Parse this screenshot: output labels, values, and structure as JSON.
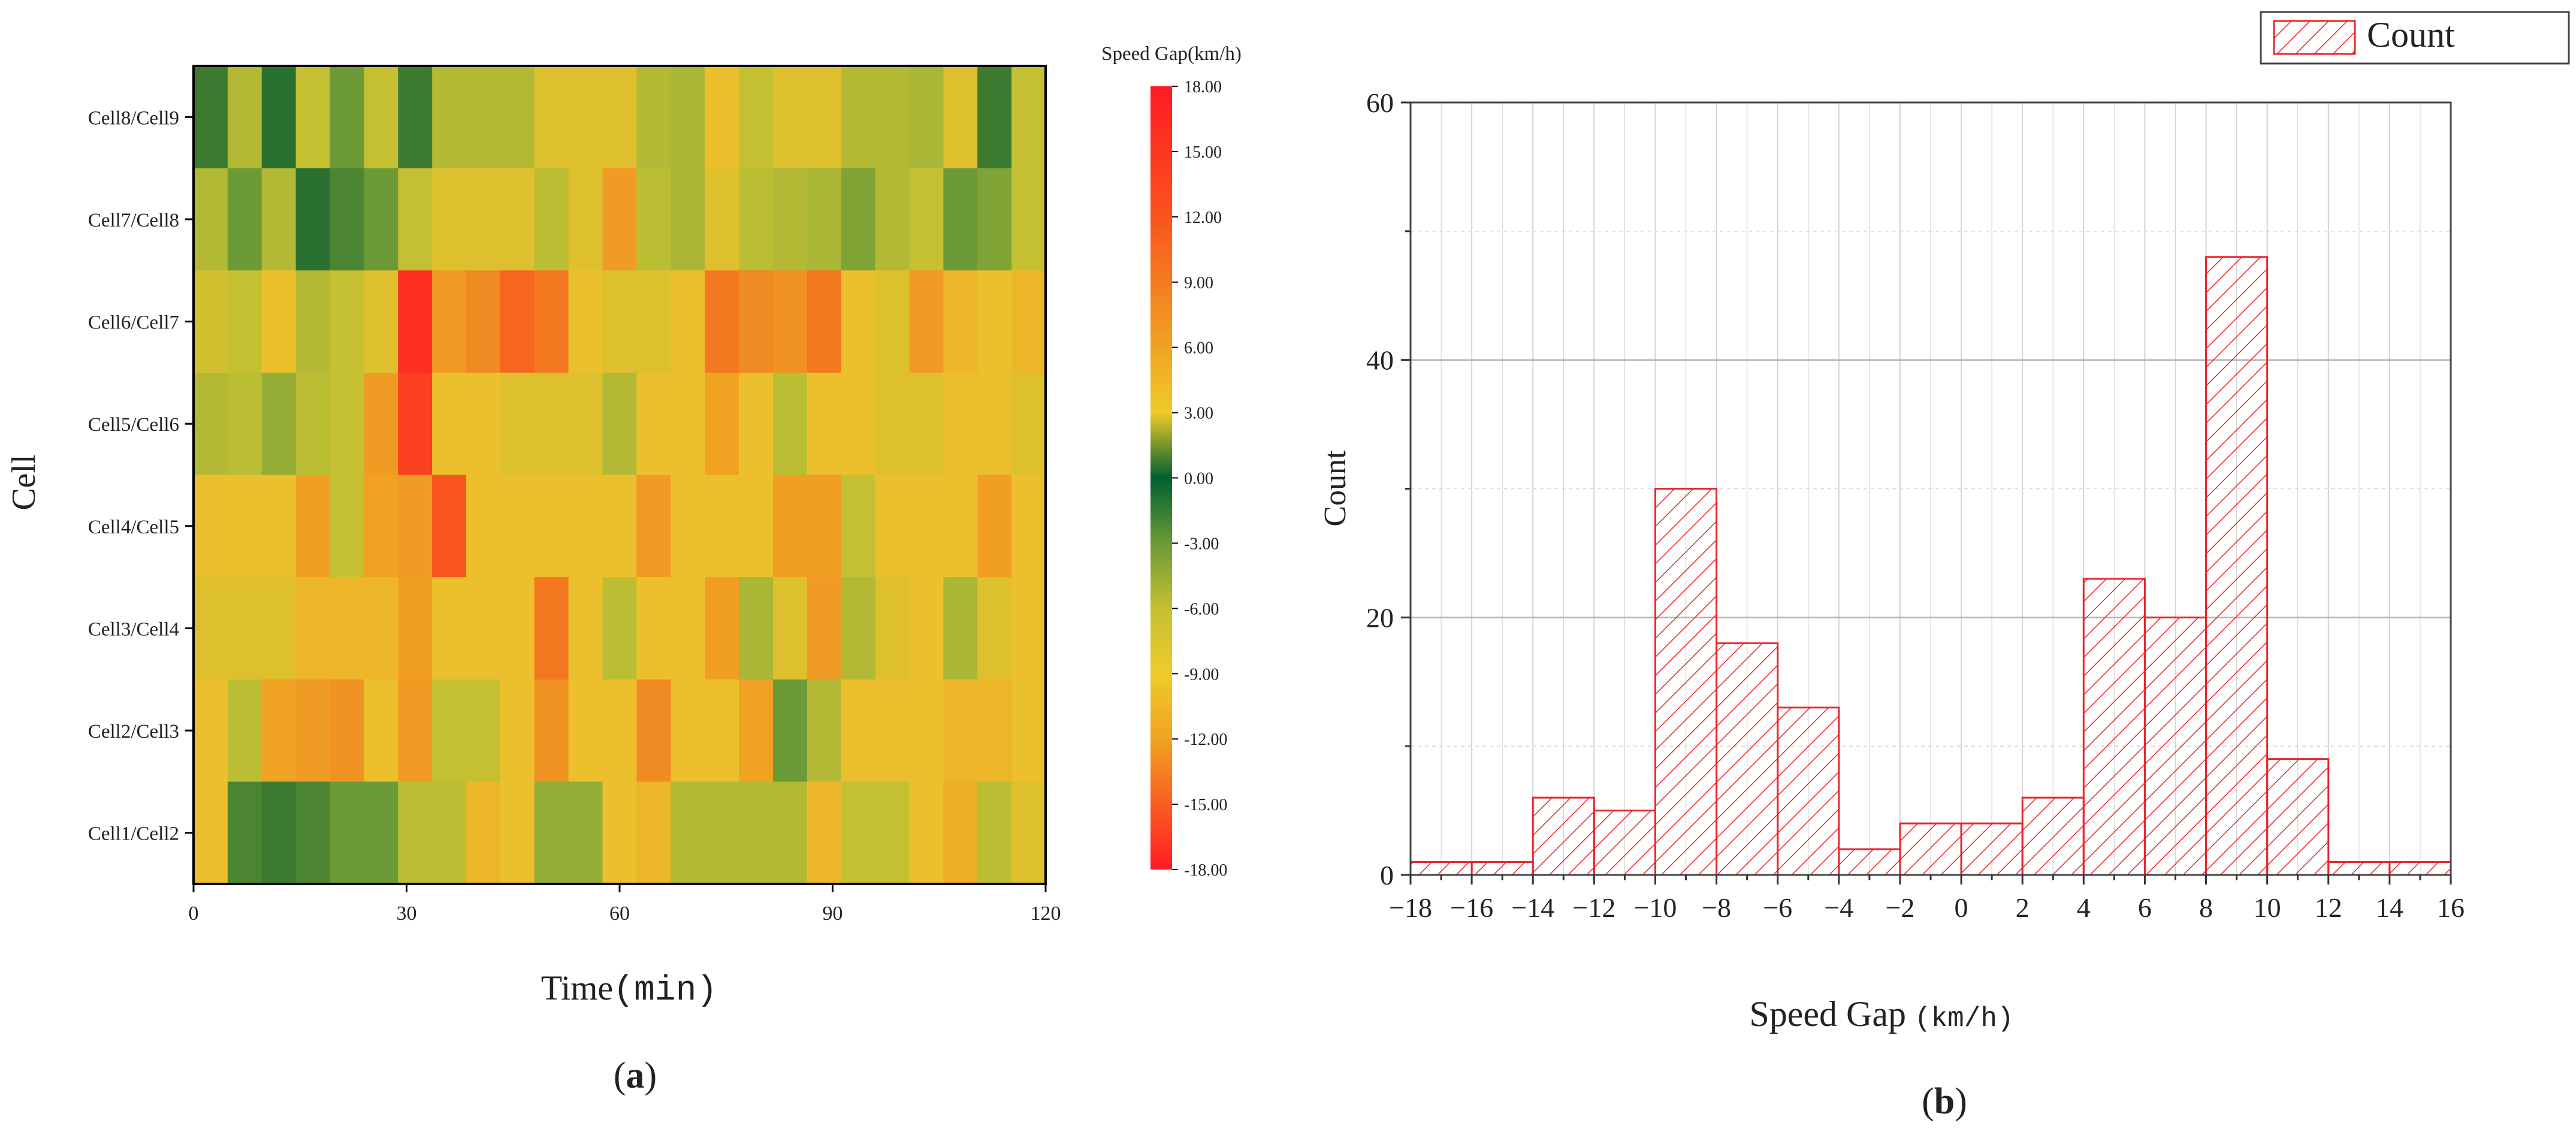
{
  "chart_data": [
    {
      "type": "heatmap",
      "panel_label": "(a)",
      "panel_label_letter": "a",
      "ylabel": "Cell",
      "xlabel": "Time",
      "xlabel_unit": "(min)",
      "x_ticks": [
        "0",
        "30",
        "60",
        "90",
        "120"
      ],
      "xlim": [
        0,
        120
      ],
      "rows": [
        "Cell8/Cell9",
        "Cell7/Cell8",
        "Cell6/Cell7",
        "Cell5/Cell6",
        "Cell4/Cell5",
        "Cell3/Cell4",
        "Cell2/Cell3",
        "Cell1/Cell2"
      ],
      "colorbar": {
        "title": "Speed Gap(km/h)",
        "range": [
          -18,
          18
        ],
        "ticks": [
          "18.00",
          "15.00",
          "12.00",
          "9.00",
          "6.00",
          "3.00",
          "0.00",
          "-3.00",
          "-6.00",
          "-9.00",
          "-12.00",
          "-15.00",
          "-18.00"
        ]
      },
      "values": [
        [
          1.5,
          -5,
          1,
          -6,
          3,
          -6,
          1.5,
          -5,
          -5,
          -5,
          -7,
          -7,
          -7,
          -5,
          -4.5,
          -7.5,
          -6,
          -7,
          -7,
          -5,
          -5,
          -4.5,
          -7,
          1.5,
          -6
        ],
        [
          -5,
          -3,
          -5,
          1,
          2,
          3,
          -6,
          -7,
          -7,
          -7,
          -5.5,
          -7,
          -10,
          -5.5,
          -4.5,
          -7,
          -5.5,
          -5,
          -4.5,
          -3.5,
          -5,
          -6,
          -3,
          -3.5,
          -6
        ],
        [
          -6.5,
          -6,
          -7.5,
          -5,
          -6,
          -7,
          -17,
          -10,
          -12,
          -14,
          -13,
          -7.5,
          -7,
          -7,
          -7.5,
          -13,
          -12,
          -11,
          -13,
          -7.5,
          -7,
          -10,
          -8,
          -7.5,
          -8
        ],
        [
          -5,
          -5.5,
          -4,
          -5.5,
          -6,
          -10,
          -16,
          -7.5,
          -7.5,
          -7,
          -7,
          -7,
          -5,
          -7.5,
          -7.5,
          -9,
          -7.5,
          -5.5,
          -7.5,
          -7.5,
          -7,
          -7,
          -7.5,
          -7.5,
          -7
        ],
        [
          -7.5,
          -7.5,
          -7.5,
          -9.5,
          -6,
          -9,
          -10,
          -15,
          -7.5,
          -7.5,
          -7.5,
          -7.5,
          -7.5,
          -10,
          -7.5,
          -7.5,
          -7.5,
          -9.5,
          -9.5,
          -6,
          -7.5,
          -7.5,
          -7.5,
          -9.5,
          -7.5
        ],
        [
          -7,
          -7,
          -7,
          -8,
          -8,
          -8,
          -9.5,
          -7.5,
          -7.5,
          -7.5,
          -13,
          -7.5,
          -5.5,
          -7.5,
          -7.5,
          -9.5,
          -4.5,
          -7,
          -10,
          -5,
          -7,
          -7.5,
          -4.5,
          -7,
          -7.5
        ],
        [
          -7.5,
          -5.5,
          -9,
          -10,
          -11,
          -7.5,
          -10,
          -6,
          -6,
          -7.5,
          -11,
          -7.5,
          -7.5,
          -12,
          -7.5,
          -7.5,
          -9,
          -3,
          -5,
          -7.5,
          -7.5,
          -7.5,
          -8,
          -8,
          -7.5
        ],
        [
          -7.5,
          2,
          1.5,
          2,
          3,
          -3,
          -5.5,
          -5.5,
          -8,
          -7.5,
          -4,
          -4,
          -7.5,
          -8,
          -5,
          -5,
          -5,
          -5,
          -8,
          -6,
          -6,
          -7.5,
          -8.5,
          -5.5,
          -7
        ]
      ]
    },
    {
      "type": "bar",
      "subtype": "histogram",
      "panel_label": "(b)",
      "panel_label_letter": "b",
      "xlabel": "Speed Gap",
      "xlabel_unit": "(km/h)",
      "ylabel": "Count",
      "legend": "Count",
      "legend_position": "top-right",
      "xlim": [
        -18,
        16
      ],
      "ylim": [
        0,
        60
      ],
      "x_ticks": [
        "-18",
        "-16",
        "-14",
        "-12",
        "-10",
        "-8",
        "-6",
        "-4",
        "-2",
        "0",
        "2",
        "4",
        "6",
        "8",
        "10",
        "12",
        "14",
        "16"
      ],
      "y_ticks": [
        "0",
        "20",
        "40",
        "60"
      ],
      "bins": [
        {
          "from": -18,
          "to": -16,
          "count": 1
        },
        {
          "from": -16,
          "to": -14,
          "count": 1
        },
        {
          "from": -14,
          "to": -12,
          "count": 6
        },
        {
          "from": -12,
          "to": -10,
          "count": 5
        },
        {
          "from": -10,
          "to": -8,
          "count": 30
        },
        {
          "from": -8,
          "to": -6,
          "count": 18
        },
        {
          "from": -6,
          "to": -4,
          "count": 13
        },
        {
          "from": -4,
          "to": -2,
          "count": 2
        },
        {
          "from": -2,
          "to": 0,
          "count": 4
        },
        {
          "from": 0,
          "to": 2,
          "count": 4
        },
        {
          "from": 2,
          "to": 4,
          "count": 6
        },
        {
          "from": 4,
          "to": 6,
          "count": 23
        },
        {
          "from": 6,
          "to": 8,
          "count": 20
        },
        {
          "from": 8,
          "to": 10,
          "count": 48
        },
        {
          "from": 10,
          "to": 12,
          "count": 9
        },
        {
          "from": 12,
          "to": 14,
          "count": 1
        },
        {
          "from": 14,
          "to": 16,
          "count": 1
        }
      ],
      "colors": {
        "bar": "#e8262c",
        "grid": "#d4d4d4"
      }
    }
  ]
}
